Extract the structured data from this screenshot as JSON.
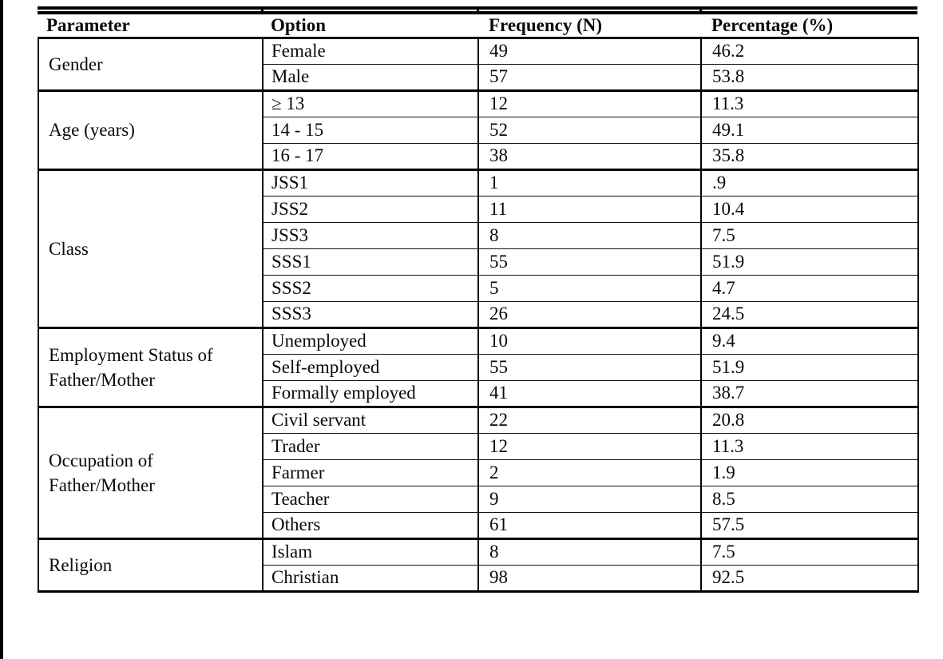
{
  "colors": {
    "background": "#ffffff",
    "text": "#0a0a0a",
    "border": "#000000"
  },
  "table": {
    "headers": [
      "Parameter",
      "Option",
      "Frequency (N)",
      "Percentage (%)"
    ],
    "groups": [
      {
        "parameter": "Gender",
        "rows": [
          {
            "option": "Female",
            "frequency": "49",
            "percentage": "46.2"
          },
          {
            "option": "Male",
            "frequency": "57",
            "percentage": "53.8"
          }
        ]
      },
      {
        "parameter": "Age (years)",
        "rows": [
          {
            "option": "≥ 13",
            "frequency": "12",
            "percentage": "11.3"
          },
          {
            "option": "14 - 15",
            "frequency": "52",
            "percentage": "49.1"
          },
          {
            "option": "16 - 17",
            "frequency": "38",
            "percentage": "35.8"
          }
        ]
      },
      {
        "parameter": "Class",
        "rows": [
          {
            "option": "JSS1",
            "frequency": "1",
            "percentage": ".9"
          },
          {
            "option": "JSS2",
            "frequency": "11",
            "percentage": "10.4"
          },
          {
            "option": "JSS3",
            "frequency": "8",
            "percentage": "7.5"
          },
          {
            "option": "SSS1",
            "frequency": "55",
            "percentage": "51.9"
          },
          {
            "option": "SSS2",
            "frequency": "5",
            "percentage": "4.7"
          },
          {
            "option": "SSS3",
            "frequency": "26",
            "percentage": "24.5"
          }
        ]
      },
      {
        "parameter": "Employment Status of Father/Mother",
        "rows": [
          {
            "option": "Unemployed",
            "frequency": "10",
            "percentage": "9.4"
          },
          {
            "option": "Self-employed",
            "frequency": "55",
            "percentage": "51.9"
          },
          {
            "option": "Formally employed",
            "frequency": "41",
            "percentage": "38.7"
          }
        ]
      },
      {
        "parameter": "Occupation of Father/Mother",
        "rows": [
          {
            "option": "Civil servant",
            "frequency": "22",
            "percentage": "20.8"
          },
          {
            "option": "Trader",
            "frequency": "12",
            "percentage": "11.3"
          },
          {
            "option": "Farmer",
            "frequency": "2",
            "percentage": "1.9"
          },
          {
            "option": "Teacher",
            "frequency": "9",
            "percentage": "8.5"
          },
          {
            "option": "Others",
            "frequency": "61",
            "percentage": "57.5"
          }
        ]
      },
      {
        "parameter": "Religion",
        "rows": [
          {
            "option": "Islam",
            "frequency": "8",
            "percentage": "7.5"
          },
          {
            "option": "Christian",
            "frequency": "98",
            "percentage": "92.5"
          }
        ]
      }
    ]
  }
}
